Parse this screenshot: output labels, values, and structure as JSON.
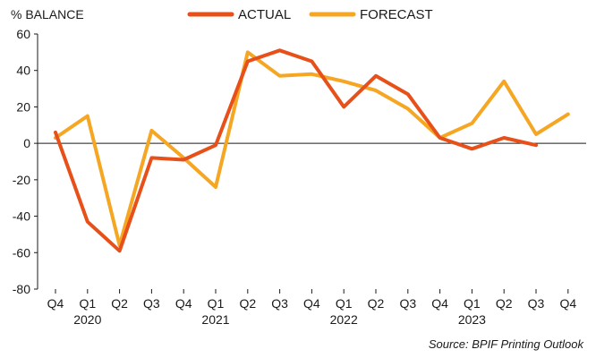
{
  "chart_data": {
    "type": "line",
    "ylabel": "% BALANCE",
    "ylim": [
      -80,
      60
    ],
    "yticks": [
      60,
      40,
      20,
      0,
      -20,
      -40,
      -60,
      -80
    ],
    "categories": [
      "Q4",
      "Q1",
      "Q2",
      "Q3",
      "Q4",
      "Q1",
      "Q2",
      "Q3",
      "Q4",
      "Q1",
      "Q2",
      "Q3",
      "Q4",
      "Q1",
      "Q2",
      "Q3",
      "Q4"
    ],
    "year_labels": [
      {
        "index": 1,
        "label": "2020"
      },
      {
        "index": 5,
        "label": "2021"
      },
      {
        "index": 9,
        "label": "2022"
      },
      {
        "index": 13,
        "label": "2023"
      }
    ],
    "series": [
      {
        "name": "ACTUAL",
        "color": "#e8501a",
        "values": [
          6,
          -43,
          -59,
          -8,
          -9,
          -1,
          45,
          51,
          45,
          20,
          37,
          27,
          3,
          -3,
          3,
          -1,
          null
        ]
      },
      {
        "name": "FORECAST",
        "color": "#f5a623",
        "values": [
          3,
          15,
          -56,
          7,
          -8,
          -24,
          50,
          37,
          38,
          34,
          29,
          19,
          3,
          11,
          34,
          5,
          16
        ]
      }
    ],
    "source": "Source: BPIF Printing Outlook",
    "legend_position": "top"
  }
}
